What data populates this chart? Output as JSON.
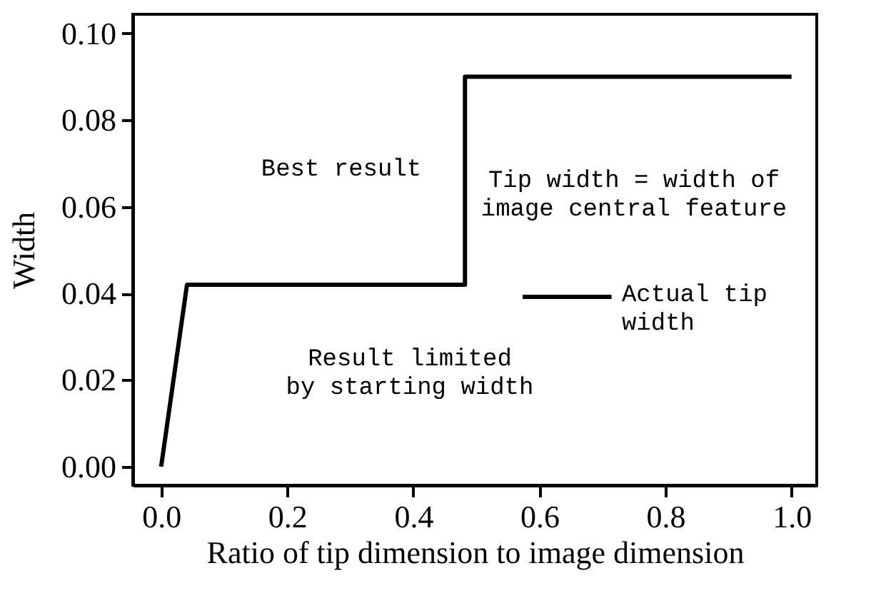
{
  "chart_data": {
    "type": "line",
    "xlabel": "Ratio of tip dimension to image dimension",
    "ylabel": "Width",
    "series": [
      {
        "name": "Actual tip\nwidth",
        "color": "#000000",
        "x": [
          0.0,
          0.041,
          0.482,
          0.482,
          1.0
        ],
        "values": [
          0.0,
          0.042,
          0.042,
          0.09,
          0.09
        ]
      }
    ],
    "xlim": [
      -0.045,
      1.04
    ],
    "ylim": [
      -0.0043,
      0.1044
    ],
    "xticks": [
      {
        "value": 0,
        "label": "0.0"
      },
      {
        "value": 0.2,
        "label": "0.2"
      },
      {
        "value": 0.4,
        "label": "0.4"
      },
      {
        "value": 0.6,
        "label": "0.6"
      },
      {
        "value": 0.8,
        "label": "0.8"
      },
      {
        "value": 1.0,
        "label": "1.0"
      }
    ],
    "yticks": [
      {
        "value": 0,
        "label": "0.00"
      },
      {
        "value": 0.02,
        "label": "0.02"
      },
      {
        "value": 0.04,
        "label": "0.04"
      },
      {
        "value": 0.06,
        "label": "0.06"
      },
      {
        "value": 0.08,
        "label": "0.08"
      },
      {
        "value": 0.1,
        "label": "0.10"
      }
    ],
    "annotations": [
      "Best result",
      "Tip width = width of\nimage central feature",
      "Result limited\nby starting width"
    ],
    "legend": "right",
    "grid": false,
    "line_style": "solid",
    "marker": "none"
  }
}
